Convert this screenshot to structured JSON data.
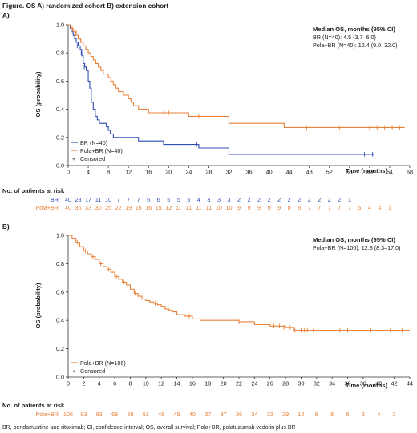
{
  "figure_title": "Figure. OS A) randomized cohort B) extension cohort",
  "footnote": "BR, bendamustine and rituximab; CI, confidence interval; OS, overall survival; Pola+BR, polatuzumab vedotin plus BR",
  "colors": {
    "BR": "#2f4fb5",
    "PolaBR": "#e9823a",
    "axis": "#333333"
  },
  "chart_data": [
    {
      "panel_label": "A)",
      "type": "line",
      "step": true,
      "xlabel": "Time (months)",
      "ylabel": "OS (probability)",
      "xlim": [
        0,
        68
      ],
      "ylim": [
        0,
        1.0
      ],
      "xticks": [
        0,
        4,
        8,
        12,
        16,
        20,
        24,
        28,
        32,
        36,
        40,
        44,
        48,
        52,
        56,
        60,
        64,
        68
      ],
      "yticks": [
        0,
        0.2,
        0.4,
        0.6,
        0.8,
        1.0
      ],
      "median_title": "Median OS, months (95% CI)",
      "median_lines": [
        "BR (N=40): 4.5 (3.7–6.0)",
        "Pola+BR (N=40): 12.4 (9.0–32.0)"
      ],
      "legend": [
        "BR (N=40)",
        "Pola+BR (N=40)",
        "Censored"
      ],
      "series": [
        {
          "name": "BR",
          "color_key": "BR",
          "x": [
            0,
            0.4,
            0.8,
            1.0,
            1.3,
            1.6,
            2.0,
            2.4,
            2.7,
            3.0,
            3.3,
            3.6,
            4.0,
            4.3,
            4.6,
            5.0,
            5.4,
            5.8,
            6.2,
            7.0,
            7.6,
            8.0,
            8.4,
            9.0,
            12.0,
            14.0,
            19.0,
            25.0,
            26.0,
            32.0,
            61.0
          ],
          "y": [
            1.0,
            0.975,
            0.95,
            0.925,
            0.9,
            0.875,
            0.85,
            0.825,
            0.78,
            0.725,
            0.7,
            0.675,
            0.6,
            0.55,
            0.45,
            0.4,
            0.35,
            0.325,
            0.3,
            0.3,
            0.275,
            0.25,
            0.225,
            0.2,
            0.2,
            0.175,
            0.15,
            0.15,
            0.125,
            0.08,
            0.08
          ],
          "censored": [
            [
              1.8,
              0.85
            ],
            [
              2.6,
              0.8
            ],
            [
              3.2,
              0.7
            ],
            [
              25.6,
              0.15
            ],
            [
              59.0,
              0.08
            ],
            [
              60.6,
              0.08
            ]
          ]
        },
        {
          "name": "Pola+BR",
          "color_key": "PolaBR",
          "x": [
            0,
            0.5,
            1.0,
            1.5,
            2.0,
            2.5,
            3.0,
            3.5,
            4.0,
            4.5,
            5.0,
            5.5,
            6.0,
            6.5,
            7.0,
            8.0,
            8.5,
            9.0,
            9.5,
            10.0,
            11.0,
            12.0,
            12.5,
            13.0,
            14.0,
            15.0,
            16.0,
            17.0,
            18.0,
            20.0,
            24.0,
            26.0,
            28.0,
            32.0,
            38.0,
            43.0,
            67.0
          ],
          "y": [
            1.0,
            0.975,
            0.95,
            0.925,
            0.9,
            0.875,
            0.85,
            0.825,
            0.8,
            0.775,
            0.75,
            0.725,
            0.7,
            0.675,
            0.65,
            0.625,
            0.6,
            0.575,
            0.55,
            0.525,
            0.5,
            0.475,
            0.45,
            0.425,
            0.4,
            0.4,
            0.375,
            0.375,
            0.375,
            0.375,
            0.35,
            0.35,
            0.35,
            0.3,
            0.3,
            0.27,
            0.27
          ],
          "censored": [
            [
              0.8,
              0.975
            ],
            [
              1.6,
              0.95
            ],
            [
              19.0,
              0.375
            ],
            [
              20.0,
              0.375
            ],
            [
              26.0,
              0.35
            ],
            [
              47.5,
              0.27
            ],
            [
              54.0,
              0.27
            ],
            [
              60.0,
              0.27
            ],
            [
              61.5,
              0.27
            ],
            [
              63.0,
              0.27
            ],
            [
              64.5,
              0.27
            ],
            [
              66.0,
              0.27
            ]
          ]
        }
      ],
      "risk_table": {
        "title": "No. of patients at risk",
        "rows": [
          {
            "label": "BR",
            "color_key": "BR",
            "values": [
              "40",
              "28",
              "17",
              "11",
              "10",
              "7",
              "7",
              "7",
              "6",
              "6",
              "5",
              "5",
              "5",
              "4",
              "3",
              "3",
              "3",
              "2",
              "2",
              "2",
              "2",
              "2",
              "2",
              "2",
              "2",
              "2",
              "2",
              "2",
              "1"
            ]
          },
          {
            "label": "Pola+BR",
            "color_key": "PolaBR",
            "values": [
              "40",
              "36",
              "33",
              "30",
              "25",
              "22",
              "19",
              "16",
              "16",
              "15",
              "12",
              "11",
              "11",
              "11",
              "11",
              "10",
              "10",
              "9",
              "9",
              "9",
              "9",
              "9",
              "8",
              "8",
              "7",
              "7",
              "7",
              "7",
              "7",
              "5",
              "4",
              "4",
              "1"
            ]
          }
        ],
        "x_step": 2
      }
    },
    {
      "panel_label": "B)",
      "type": "line",
      "step": true,
      "xlabel": "Time (months)",
      "ylabel": "OS (probability)",
      "xlim": [
        0,
        44
      ],
      "ylim": [
        0,
        1.0
      ],
      "xticks": [
        0,
        2,
        4,
        6,
        8,
        10,
        12,
        14,
        16,
        18,
        20,
        22,
        24,
        26,
        28,
        30,
        32,
        34,
        36,
        38,
        40,
        42,
        44
      ],
      "yticks": [
        0,
        0.2,
        0.4,
        0.6,
        0.8,
        1.0
      ],
      "median_title": "Median OS, months (95% CI)",
      "median_lines": [
        "Pola+BR (N=106): 12.3 (8.3–17.0)"
      ],
      "legend": [
        "Pola+BR (N=106)",
        "Censored"
      ],
      "series": [
        {
          "name": "Pola+BR",
          "color_key": "PolaBR",
          "x": [
            0,
            0.5,
            1.0,
            1.5,
            2.0,
            2.5,
            3.0,
            3.5,
            4.0,
            4.5,
            5.0,
            5.5,
            6.0,
            6.5,
            7.0,
            7.5,
            8.0,
            8.5,
            9.0,
            9.5,
            10.0,
            10.5,
            11.0,
            11.5,
            12.0,
            12.5,
            13.0,
            13.5,
            14.0,
            15.0,
            16.0,
            17.0,
            18.0,
            20.0,
            22.0,
            23.0,
            24.0,
            26.0,
            28.0,
            29.0,
            44.0
          ],
          "y": [
            1.0,
            0.98,
            0.95,
            0.92,
            0.89,
            0.87,
            0.85,
            0.83,
            0.8,
            0.78,
            0.76,
            0.74,
            0.71,
            0.69,
            0.67,
            0.65,
            0.62,
            0.59,
            0.57,
            0.55,
            0.54,
            0.53,
            0.52,
            0.51,
            0.5,
            0.48,
            0.47,
            0.46,
            0.44,
            0.43,
            0.41,
            0.4,
            0.4,
            0.4,
            0.39,
            0.39,
            0.37,
            0.36,
            0.35,
            0.33,
            0.33
          ],
          "censored": [
            [
              1.2,
              0.95
            ],
            [
              2.2,
              0.89
            ],
            [
              3.2,
              0.85
            ],
            [
              4.2,
              0.8
            ],
            [
              5.2,
              0.76
            ],
            [
              6.2,
              0.71
            ],
            [
              7.2,
              0.67
            ],
            [
              8.6,
              0.59
            ],
            [
              11.2,
              0.52
            ],
            [
              15.6,
              0.43
            ],
            [
              22.0,
              0.39
            ],
            [
              26.5,
              0.36
            ],
            [
              27.2,
              0.36
            ],
            [
              27.8,
              0.35
            ],
            [
              28.6,
              0.35
            ],
            [
              29.2,
              0.33
            ],
            [
              29.6,
              0.33
            ],
            [
              30.0,
              0.33
            ],
            [
              30.4,
              0.33
            ],
            [
              30.8,
              0.33
            ],
            [
              31.6,
              0.33
            ],
            [
              35.0,
              0.33
            ],
            [
              36.0,
              0.33
            ],
            [
              39.0,
              0.33
            ],
            [
              41.5,
              0.33
            ],
            [
              43.0,
              0.33
            ]
          ]
        }
      ],
      "risk_table": {
        "title": "No. of patients at risk",
        "rows": [
          {
            "label": "Pola+BR",
            "color_key": "PolaBR",
            "values": [
              "106",
              "93",
              "83",
              "68",
              "58",
              "51",
              "48",
              "45",
              "40",
              "37",
              "37",
              "36",
              "34",
              "32",
              "29",
              "12",
              "8",
              "8",
              "6",
              "5",
              "4",
              "2"
            ]
          }
        ],
        "x_step": 2
      }
    }
  ]
}
